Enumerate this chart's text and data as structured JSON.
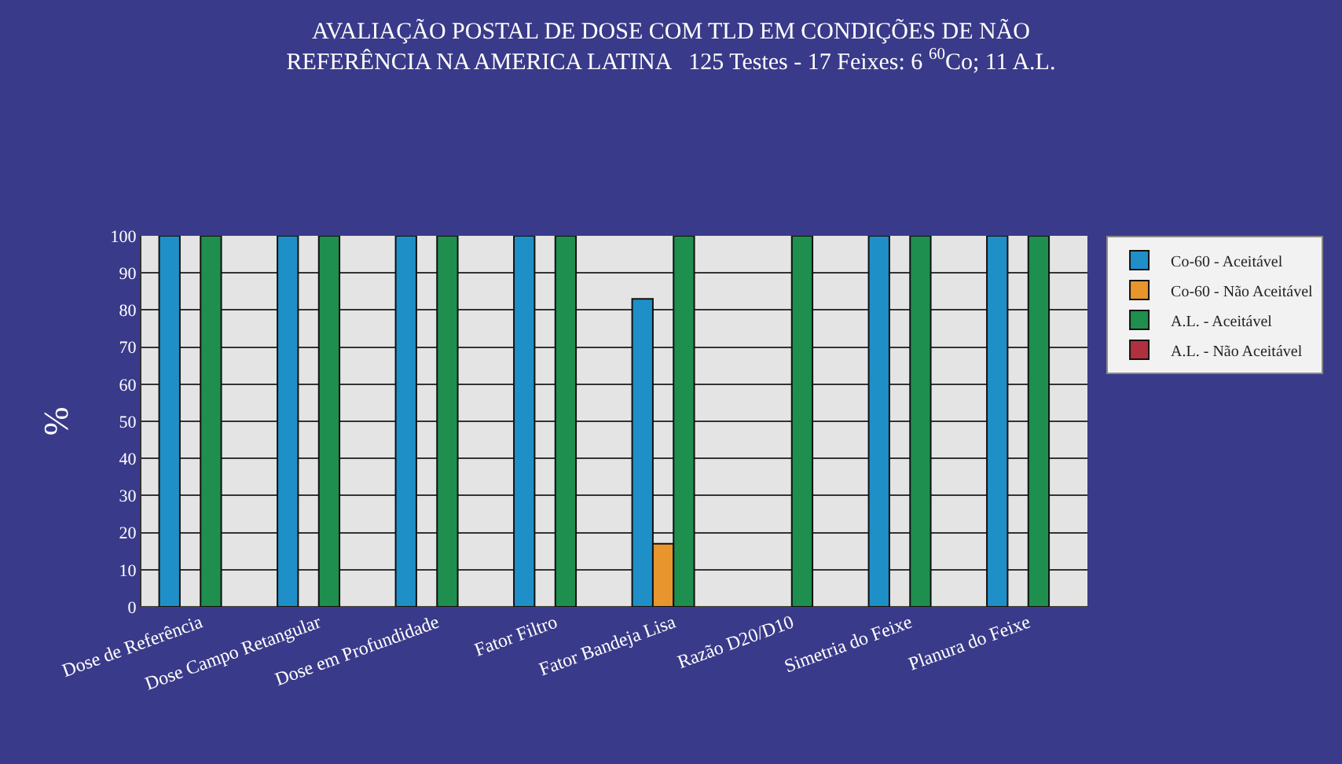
{
  "chart_data": {
    "type": "bar",
    "title": "AVALIAÇÃO POSTAL DE DOSE COM TLD EM CONDIÇÕES DE NÃO\nREFERÊNCIA NA AMERICA LATINA   125 Testes - 17 Feixes: 6 $^{60}$Co; 11 A.L.",
    "ylabel": "%",
    "categories": [
      "Dose de Referência",
      "Dose Campo Retangular",
      "Dose em Profundidade",
      "Fator Filtro",
      "Fator Bandeja Lisa",
      "Razão D20/D10",
      "Simetria do Feixe",
      "Planura do Feixe"
    ],
    "series": [
      {
        "name": "Co-60 - Aceitável",
        "color": "#1f8fc8",
        "values": [
          100,
          100,
          100,
          100,
          83,
          null,
          100,
          100
        ]
      },
      {
        "name": "Co-60 - Não Aceitável",
        "color": "#e8952e",
        "values": [
          null,
          null,
          null,
          null,
          17,
          null,
          null,
          null
        ]
      },
      {
        "name": "A.L. - Aceitável",
        "color": "#1e8f4e",
        "values": [
          100,
          100,
          100,
          100,
          100,
          100,
          100,
          100
        ]
      },
      {
        "name": "A.L. - Não Aceitável",
        "color": "#b03040",
        "values": [
          null,
          null,
          null,
          null,
          null,
          null,
          null,
          null
        ]
      }
    ],
    "ylim": [
      0,
      100
    ],
    "yticks": [
      0,
      10,
      20,
      30,
      40,
      50,
      60,
      70,
      80,
      90,
      100
    ],
    "grid": "y",
    "legend": "right"
  }
}
